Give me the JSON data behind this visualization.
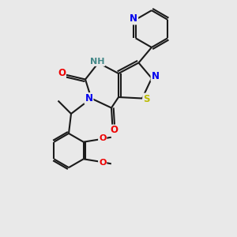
{
  "background_color": "#e9e9e9",
  "bond_color": "#1a1a1a",
  "atom_colors": {
    "N": "#0000ee",
    "O": "#ee0000",
    "S": "#bbbb00",
    "H": "#448888",
    "C": "#1a1a1a"
  },
  "figsize": [
    3.0,
    3.0
  ],
  "dpi": 100
}
